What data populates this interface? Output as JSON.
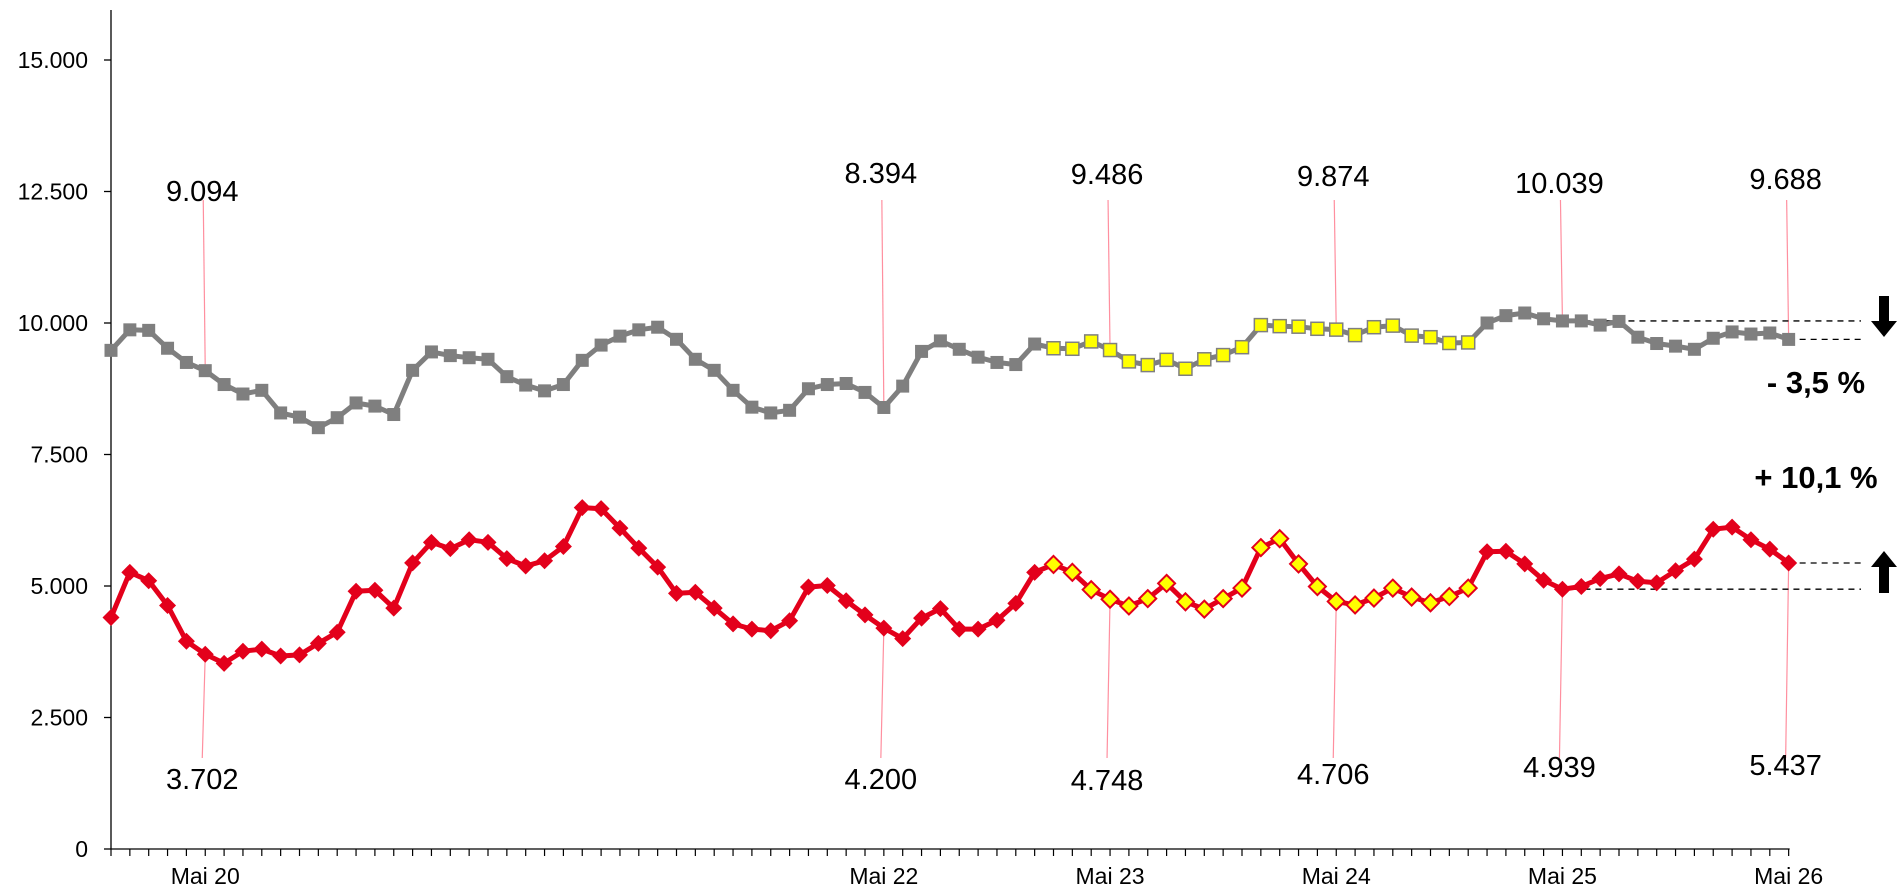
{
  "chart_data": {
    "type": "line",
    "title": "",
    "xlabel": "",
    "ylabel": "",
    "ylim": [
      0,
      16000
    ],
    "yticks": [
      "0",
      "2.500",
      "5.000",
      "7.500",
      "10.000",
      "12.500",
      "15.000"
    ],
    "ytick_values": [
      0,
      2500,
      5000,
      7500,
      10000,
      12500,
      15000
    ],
    "xticks": [
      {
        "label": "Mai 20",
        "index": 5
      },
      {
        "label": "Mai 22",
        "index": 41
      },
      {
        "label": "Mai 23",
        "index": 53
      },
      {
        "label": "Mai 24",
        "index": 65
      },
      {
        "label": "Mai 25",
        "index": 77
      },
      {
        "label": "Mai 26",
        "index": 89
      }
    ],
    "highlight_range": [
      50,
      72
    ],
    "series": [
      {
        "name": "",
        "color": "#7f7f7f",
        "highlight_fill": "#ffff00",
        "marker": "square",
        "values": [
          9480,
          9870,
          9860,
          9520,
          9250,
          9094,
          8830,
          8650,
          8720,
          8290,
          8210,
          8010,
          8200,
          8480,
          8420,
          8260,
          9100,
          9450,
          9380,
          9340,
          9310,
          8980,
          8820,
          8710,
          8830,
          9290,
          9580,
          9750,
          9870,
          9920,
          9690,
          9310,
          9100,
          8720,
          8400,
          8290,
          8340,
          8750,
          8830,
          8850,
          8680,
          8394,
          8800,
          9460,
          9660,
          9500,
          9350,
          9250,
          9210,
          9600,
          9520,
          9510,
          9650,
          9486,
          9270,
          9200,
          9300,
          9130,
          9310,
          9390,
          9540,
          9960,
          9940,
          9930,
          9890,
          9874,
          9770,
          9920,
          9950,
          9760,
          9730,
          9620,
          9630,
          10000,
          10140,
          10190,
          10080,
          10039,
          10040,
          9960,
          10030,
          9730,
          9610,
          9560,
          9500,
          9710,
          9830,
          9790,
          9810,
          9688
        ]
      },
      {
        "name": "",
        "color": "#e3001b",
        "highlight_fill": "#ffff00",
        "marker": "diamond",
        "values": [
          4400,
          5260,
          5100,
          4630,
          3950,
          3702,
          3530,
          3760,
          3800,
          3670,
          3690,
          3910,
          4120,
          4900,
          4920,
          4580,
          5440,
          5830,
          5710,
          5880,
          5830,
          5520,
          5380,
          5480,
          5750,
          6490,
          6470,
          6100,
          5720,
          5360,
          4860,
          4880,
          4580,
          4280,
          4180,
          4150,
          4340,
          4980,
          5010,
          4720,
          4450,
          4200,
          4000,
          4390,
          4570,
          4180,
          4180,
          4350,
          4670,
          5260,
          5410,
          5260,
          4930,
          4748,
          4620,
          4760,
          5050,
          4700,
          4560,
          4760,
          4960,
          5730,
          5900,
          5420,
          4990,
          4706,
          4640,
          4770,
          4960,
          4790,
          4680,
          4800,
          4960,
          5650,
          5660,
          5420,
          5110,
          4939,
          4990,
          5140,
          5230,
          5090,
          5060,
          5290,
          5510,
          6080,
          6120,
          5880,
          5700,
          5437
        ]
      }
    ],
    "annotations_top": [
      {
        "index": 5,
        "text": "9.094"
      },
      {
        "index": 41,
        "text": "8.394"
      },
      {
        "index": 53,
        "text": "9.486"
      },
      {
        "index": 65,
        "text": "9.874"
      },
      {
        "index": 77,
        "text": "10.039"
      },
      {
        "index": 89,
        "text": "9.688"
      }
    ],
    "annotations_bottom": [
      {
        "index": 5,
        "text": "3.702"
      },
      {
        "index": 41,
        "text": "4.200"
      },
      {
        "index": 53,
        "text": "4.748"
      },
      {
        "index": 65,
        "text": "4.706"
      },
      {
        "index": 77,
        "text": "4.939"
      },
      {
        "index": 89,
        "text": "5.437"
      }
    ],
    "change_labels": [
      {
        "series": 0,
        "text": "- 3,5 %",
        "direction": "down",
        "from_index": 77,
        "to_index": 89
      },
      {
        "series": 1,
        "text": "+ 10,1 %",
        "direction": "up",
        "from_index": 77,
        "to_index": 89
      }
    ]
  }
}
